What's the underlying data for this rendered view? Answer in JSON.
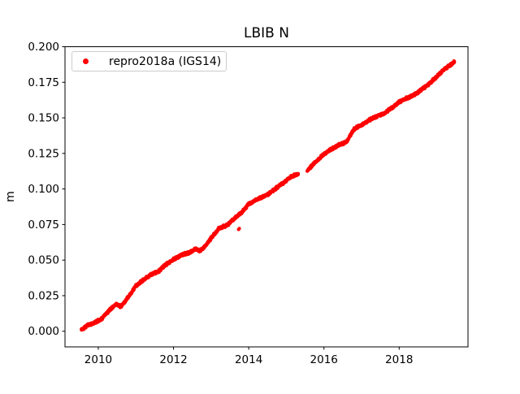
{
  "chart_data": {
    "type": "scatter",
    "title": "LBIB N",
    "xlabel": "",
    "ylabel": "m",
    "xlim": [
      2009.115,
      2019.83
    ],
    "ylim": [
      -0.011,
      0.2
    ],
    "xticks": [
      2010,
      2012,
      2014,
      2016,
      2018
    ],
    "yticks": [
      0.0,
      0.025,
      0.05,
      0.075,
      0.1,
      0.125,
      0.15,
      0.175,
      0.2
    ],
    "y_tick_decimals": 3,
    "grid": false,
    "colors": {
      "marker": "#ff0000",
      "axis": "#000000",
      "legend_border": "#cccccc",
      "background": "#ffffff"
    },
    "legend": {
      "position": "upper-left",
      "entries": [
        {
          "label": "repro2018a (IGS14)",
          "color": "#ff0000",
          "marker": "point"
        }
      ]
    },
    "series": [
      {
        "name": "repro2018a (IGS14)",
        "color": "#ff0000",
        "marker_radius_px": 2,
        "point_interval_years": 0.004,
        "noise_amplitude_m": 0.0011,
        "trend_anchors": [
          [
            2009.55,
            0.001
          ],
          [
            2009.7,
            0.004
          ],
          [
            2009.9,
            0.006
          ],
          [
            2010.1,
            0.009
          ],
          [
            2010.3,
            0.015
          ],
          [
            2010.47,
            0.019
          ],
          [
            2010.6,
            0.0172
          ],
          [
            2010.8,
            0.024
          ],
          [
            2011.0,
            0.032
          ],
          [
            2011.2,
            0.036
          ],
          [
            2011.4,
            0.0398
          ],
          [
            2011.6,
            0.042
          ],
          [
            2011.8,
            0.047
          ],
          [
            2012.0,
            0.0505
          ],
          [
            2012.2,
            0.0535
          ],
          [
            2012.4,
            0.055
          ],
          [
            2012.6,
            0.058
          ],
          [
            2012.7,
            0.0565
          ],
          [
            2012.85,
            0.06
          ],
          [
            2013.0,
            0.0655
          ],
          [
            2013.2,
            0.072
          ],
          [
            2013.45,
            0.075
          ],
          [
            2013.6,
            0.079
          ],
          [
            2013.8,
            0.083
          ],
          [
            2014.0,
            0.0895
          ],
          [
            2014.25,
            0.093
          ],
          [
            2014.5,
            0.096
          ],
          [
            2014.75,
            0.101
          ],
          [
            2015.0,
            0.106
          ],
          [
            2015.15,
            0.109
          ],
          [
            2015.32,
            0.1105
          ],
          [
            2015.55,
            0.1125
          ],
          [
            2015.7,
            0.117
          ],
          [
            2015.9,
            0.122
          ],
          [
            2016.0,
            0.1245
          ],
          [
            2016.2,
            0.128
          ],
          [
            2016.4,
            0.131
          ],
          [
            2016.6,
            0.133
          ],
          [
            2016.8,
            0.142
          ],
          [
            2017.0,
            0.145
          ],
          [
            2017.2,
            0.1485
          ],
          [
            2017.4,
            0.151
          ],
          [
            2017.6,
            0.153
          ],
          [
            2017.8,
            0.157
          ],
          [
            2018.0,
            0.161
          ],
          [
            2018.2,
            0.164
          ],
          [
            2018.4,
            0.166
          ],
          [
            2018.6,
            0.17
          ],
          [
            2018.8,
            0.174
          ],
          [
            2019.0,
            0.179
          ],
          [
            2019.2,
            0.184
          ],
          [
            2019.35,
            0.187
          ],
          [
            2019.47,
            0.1895
          ]
        ],
        "gaps": [
          [
            2015.32,
            2015.55
          ]
        ],
        "outliers": [
          [
            2013.73,
            0.0715
          ],
          [
            2013.75,
            0.0722
          ]
        ]
      }
    ]
  }
}
